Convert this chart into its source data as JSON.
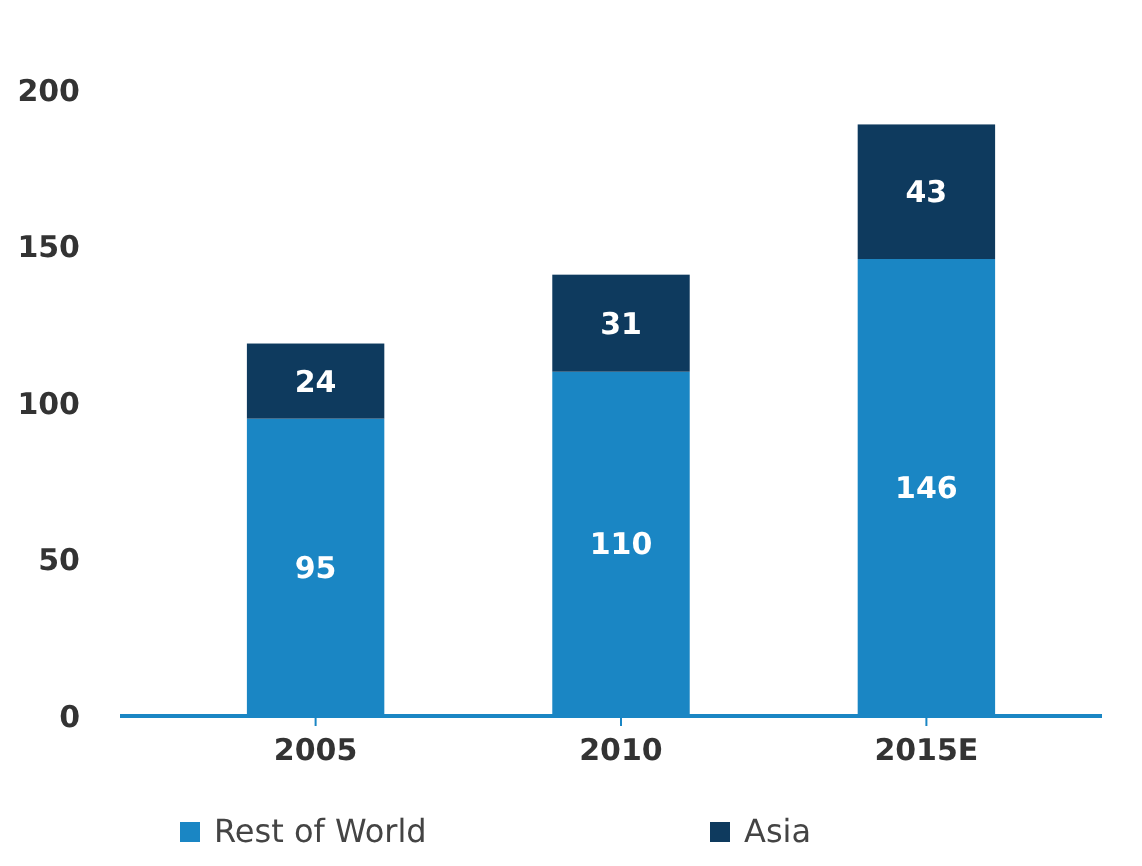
{
  "chart_data": {
    "type": "bar",
    "stacked": true,
    "categories": [
      "2005",
      "2010",
      "2015E"
    ],
    "series": [
      {
        "name": "Rest of World",
        "color": "#1a86c4",
        "values": [
          95,
          110,
          146
        ]
      },
      {
        "name": "Asia",
        "color": "#0e3a5e",
        "values": [
          24,
          31,
          43
        ]
      }
    ],
    "ylim": [
      0,
      200
    ],
    "yticks": [
      0,
      50,
      100,
      150,
      200
    ],
    "data_labels": true,
    "legend": "bottom",
    "grid": false
  }
}
